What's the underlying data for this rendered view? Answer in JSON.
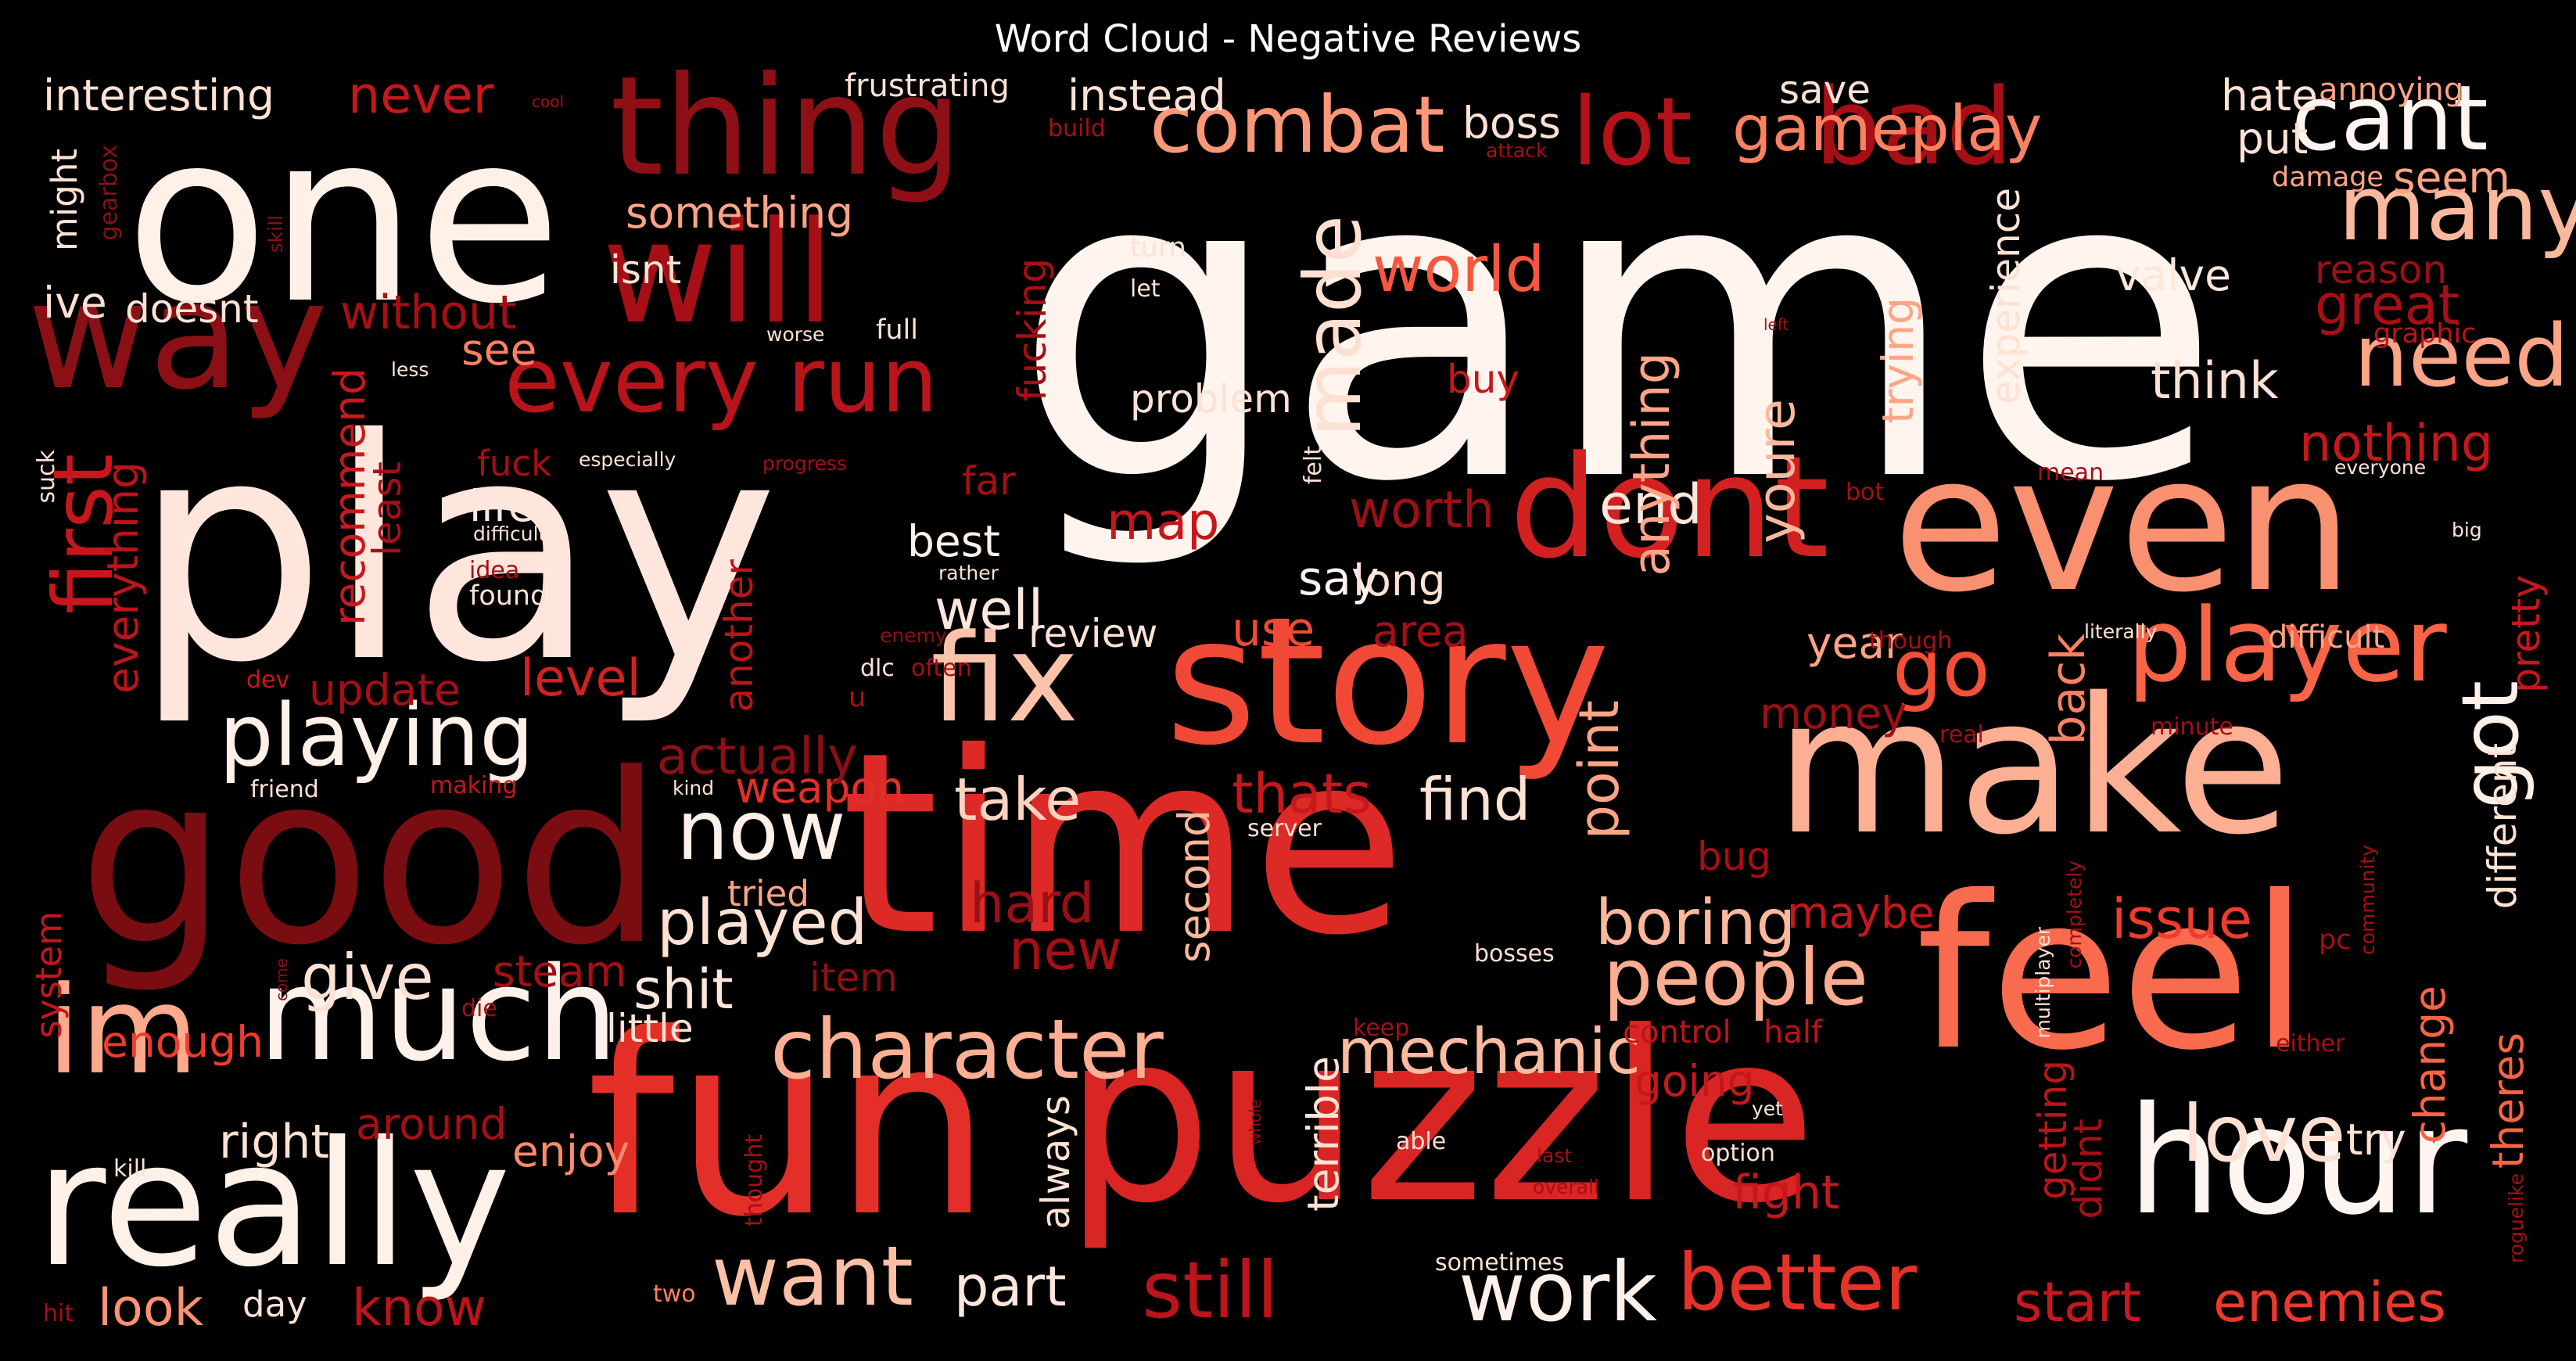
{
  "title": "Word Cloud - Negative Reviews",
  "colors": {
    "background": "#000000",
    "title": "#ffffff"
  },
  "words": [
    {
      "text": "game",
      "color": "#fff4ee",
      "rotated": false
    },
    {
      "text": "one",
      "color": "#fff0e8",
      "rotated": false
    },
    {
      "text": "play",
      "color": "#ffe6dc",
      "rotated": false
    },
    {
      "text": "good",
      "color": "#7a0d12",
      "rotated": false
    },
    {
      "text": "time",
      "color": "#dd2a26",
      "rotated": false
    },
    {
      "text": "fun",
      "color": "#e32f27",
      "rotated": false
    },
    {
      "text": "puzzle",
      "color": "#d92523",
      "rotated": false
    },
    {
      "text": "make",
      "color": "#fcaf93",
      "rotated": false
    },
    {
      "text": "feel",
      "color": "#f96b4e",
      "rotated": false
    },
    {
      "text": "story",
      "color": "#f04a36",
      "rotated": false
    },
    {
      "text": "even",
      "color": "#f9906f",
      "rotated": false
    },
    {
      "text": "really",
      "color": "#fff0e8",
      "rotated": false
    },
    {
      "text": "hour",
      "color": "#fff5f0",
      "rotated": false
    },
    {
      "text": "thing",
      "color": "#8e1016",
      "rotated": false
    },
    {
      "text": "will",
      "color": "#a50f15",
      "rotated": false
    },
    {
      "text": "way",
      "color": "#8b1015",
      "rotated": false
    },
    {
      "text": "dont",
      "color": "#d32020",
      "rotated": false
    },
    {
      "text": "player",
      "color": "#f96346",
      "rotated": false
    },
    {
      "text": "much",
      "color": "#fff1ea",
      "rotated": false
    },
    {
      "text": "fix",
      "color": "#fcc2aa",
      "rotated": false
    },
    {
      "text": "im",
      "color": "#fca98c",
      "rotated": false
    },
    {
      "text": "combat",
      "color": "#fc9778",
      "rotated": false
    },
    {
      "text": "bad",
      "color": "#a50f15",
      "rotated": false
    },
    {
      "text": "lot",
      "color": "#b31218",
      "rotated": false
    },
    {
      "text": "cant",
      "color": "#fff5f0",
      "rotated": false
    },
    {
      "text": "gameplay",
      "color": "#fc8161",
      "rotated": false
    },
    {
      "text": "many",
      "color": "#fcb89d",
      "rotated": false
    },
    {
      "text": "need",
      "color": "#fca486",
      "rotated": false
    },
    {
      "text": "every run",
      "color": "#b81419",
      "rotated": false
    },
    {
      "text": "first",
      "color": "#c5171c",
      "rotated": true
    },
    {
      "text": "playing",
      "color": "#fff0e8",
      "rotated": false
    },
    {
      "text": "character",
      "color": "#fcaf93",
      "rotated": false
    },
    {
      "text": "people",
      "color": "#fcac8f",
      "rotated": false
    },
    {
      "text": "want",
      "color": "#fcc0a6",
      "rotated": false
    },
    {
      "text": "now",
      "color": "#fff0e8",
      "rotated": false
    },
    {
      "text": "better",
      "color": "#e53228",
      "rotated": false
    },
    {
      "text": "love",
      "color": "#fde0d2",
      "rotated": false
    },
    {
      "text": "work",
      "color": "#fff1ea",
      "rotated": false
    },
    {
      "text": "still",
      "color": "#bb141a",
      "rotated": false
    },
    {
      "text": "go",
      "color": "#f44f39",
      "rotated": false
    },
    {
      "text": "got",
      "color": "#fff0e8",
      "rotated": true
    },
    {
      "text": "made",
      "color": "#fde0d2",
      "rotated": true
    },
    {
      "text": "world",
      "color": "#f6573f",
      "rotated": false
    },
    {
      "text": "mechanic",
      "color": "#fcbba1",
      "rotated": false
    },
    {
      "text": "find",
      "color": "#fde2d4",
      "rotated": false
    },
    {
      "text": "take",
      "color": "#fdd3c0",
      "rotated": false
    },
    {
      "text": "played",
      "color": "#fde2d4",
      "rotated": false
    },
    {
      "text": "give",
      "color": "#fde2d4",
      "rotated": false
    },
    {
      "text": "boring",
      "color": "#fcb89d",
      "rotated": false
    },
    {
      "text": "issue",
      "color": "#ef3c2c",
      "rotated": false
    },
    {
      "text": "start",
      "color": "#c8181d",
      "rotated": false
    },
    {
      "text": "enemies",
      "color": "#ed392b",
      "rotated": false
    },
    {
      "text": "look",
      "color": "#fc9272",
      "rotated": false
    },
    {
      "text": "know",
      "color": "#bb141a",
      "rotated": false
    },
    {
      "text": "part",
      "color": "#fde6db",
      "rotated": false
    },
    {
      "text": "right",
      "color": "#fde2d4",
      "rotated": false
    },
    {
      "text": "enjoy",
      "color": "#fc8a6a",
      "rotated": false
    },
    {
      "text": "around",
      "color": "#a50f15",
      "rotated": false
    },
    {
      "text": "enough",
      "color": "#ef3c2c",
      "rotated": false
    },
    {
      "text": "little",
      "color": "#fde2d4",
      "rotated": false
    },
    {
      "text": "shit",
      "color": "#fde6db",
      "rotated": false
    },
    {
      "text": "steam",
      "color": "#a50f15",
      "rotated": false
    },
    {
      "text": "item",
      "color": "#8b1015",
      "rotated": false
    },
    {
      "text": "new",
      "color": "#a50f15",
      "rotated": false
    },
    {
      "text": "hard",
      "color": "#9a1016",
      "rotated": false
    },
    {
      "text": "second",
      "color": "#fcb89d",
      "rotated": true
    },
    {
      "text": "thats",
      "color": "#c5171c",
      "rotated": false
    },
    {
      "text": "weapon",
      "color": "#e32f27",
      "rotated": false
    },
    {
      "text": "actually",
      "color": "#8b1015",
      "rotated": false
    },
    {
      "text": "level",
      "color": "#d42121",
      "rotated": false
    },
    {
      "text": "update",
      "color": "#a50f15",
      "rotated": false
    },
    {
      "text": "everything",
      "color": "#bb141a",
      "rotated": true
    },
    {
      "text": "recommend",
      "color": "#c8181d",
      "rotated": true
    },
    {
      "text": "least",
      "color": "#a50f15",
      "rotated": true
    },
    {
      "text": "life",
      "color": "#fde6db",
      "rotated": false
    },
    {
      "text": "best",
      "color": "#fff1ea",
      "rotated": false
    },
    {
      "text": "well",
      "color": "#fde6db",
      "rotated": false
    },
    {
      "text": "review",
      "color": "#fde2d4",
      "rotated": false
    },
    {
      "text": "use",
      "color": "#f04a36",
      "rotated": false
    },
    {
      "text": "area",
      "color": "#a50f15",
      "rotated": false
    },
    {
      "text": "say",
      "color": "#fff5f0",
      "rotated": false
    },
    {
      "text": "long",
      "color": "#fde2d4",
      "rotated": false
    },
    {
      "text": "worth",
      "color": "#9a1016",
      "rotated": false
    },
    {
      "text": "map",
      "color": "#c5171c",
      "rotated": false
    },
    {
      "text": "end",
      "color": "#fde6db",
      "rotated": false
    },
    {
      "text": "point",
      "color": "#fca486",
      "rotated": true
    },
    {
      "text": "youre",
      "color": "#fcb89d",
      "rotated": true
    },
    {
      "text": "anything",
      "color": "#fca486",
      "rotated": true
    },
    {
      "text": "year",
      "color": "#fca486",
      "rotated": false
    },
    {
      "text": "money",
      "color": "#9a1016",
      "rotated": false
    },
    {
      "text": "back",
      "color": "#fc8161",
      "rotated": true
    },
    {
      "text": "bug",
      "color": "#a50f15",
      "rotated": false
    },
    {
      "text": "maybe",
      "color": "#c5171c",
      "rotated": false
    },
    {
      "text": "going",
      "color": "#c5171c",
      "rotated": false
    },
    {
      "text": "control",
      "color": "#bb141a",
      "rotated": false
    },
    {
      "text": "half",
      "color": "#bb141a",
      "rotated": false
    },
    {
      "text": "terrible",
      "color": "#fde2d4",
      "rotated": true
    },
    {
      "text": "always",
      "color": "#fde2d4",
      "rotated": true
    },
    {
      "text": "fight",
      "color": "#c5171c",
      "rotated": false
    },
    {
      "text": "getting",
      "color": "#bb141a",
      "rotated": true
    },
    {
      "text": "didnt",
      "color": "#a50f15",
      "rotated": true
    },
    {
      "text": "try",
      "color": "#fde2d4",
      "rotated": false
    },
    {
      "text": "change",
      "color": "#f96346",
      "rotated": true
    },
    {
      "text": "theres",
      "color": "#f96346",
      "rotated": true
    },
    {
      "text": "different",
      "color": "#fde2d4",
      "rotated": true
    },
    {
      "text": "pretty",
      "color": "#c5171c",
      "rotated": true
    },
    {
      "text": "difficult",
      "color": "#fca486",
      "rotated": false
    },
    {
      "text": "nothing",
      "color": "#c5171c",
      "rotated": false
    },
    {
      "text": "great",
      "color": "#a50f15",
      "rotated": false
    },
    {
      "text": "think",
      "color": "#fde2d4",
      "rotated": false
    },
    {
      "text": "seem",
      "color": "#fca486",
      "rotated": false
    },
    {
      "text": "put",
      "color": "#fde2d4",
      "rotated": false
    },
    {
      "text": "hate",
      "color": "#fde2d4",
      "rotated": false
    },
    {
      "text": "annoying",
      "color": "#fca486",
      "rotated": false
    },
    {
      "text": "damage",
      "color": "#fca486",
      "rotated": false
    },
    {
      "text": "reason",
      "color": "#9a1016",
      "rotated": false
    },
    {
      "text": "graphic",
      "color": "#bb141a",
      "rotated": false
    },
    {
      "text": "valve",
      "color": "#fde6db",
      "rotated": false
    },
    {
      "text": "save",
      "color": "#fde2d4",
      "rotated": false
    },
    {
      "text": "boss",
      "color": "#fde2d4",
      "rotated": false
    },
    {
      "text": "instead",
      "color": "#fde2d4",
      "rotated": false
    },
    {
      "text": "frustrating",
      "color": "#fde2d4",
      "rotated": false
    },
    {
      "text": "something",
      "color": "#fca486",
      "rotated": false
    },
    {
      "text": "interesting",
      "color": "#fde2d4",
      "rotated": false
    },
    {
      "text": "never",
      "color": "#c5171c",
      "rotated": false
    },
    {
      "text": "cool",
      "color": "#a50f15",
      "rotated": false
    },
    {
      "text": "might",
      "color": "#fde2d4",
      "rotated": true
    },
    {
      "text": "gearbox",
      "color": "#8b1015",
      "rotated": true
    },
    {
      "text": "ive",
      "color": "#fde2d4",
      "rotated": false
    },
    {
      "text": "doesnt",
      "color": "#fde2d4",
      "rotated": false
    },
    {
      "text": "without",
      "color": "#a50f15",
      "rotated": false
    },
    {
      "text": "isnt",
      "color": "#fde2d4",
      "rotated": false
    },
    {
      "text": "see",
      "color": "#fc8161",
      "rotated": false
    },
    {
      "text": "fuck",
      "color": "#a50f15",
      "rotated": false
    },
    {
      "text": "far",
      "color": "#a50f15",
      "rotated": false
    },
    {
      "text": "fucking",
      "color": "#a50f15",
      "rotated": true
    },
    {
      "text": "problem",
      "color": "#fde2d4",
      "rotated": false
    },
    {
      "text": "buy",
      "color": "#c5171c",
      "rotated": false
    },
    {
      "text": "full",
      "color": "#fde2d4",
      "rotated": false
    },
    {
      "text": "turn",
      "color": "#fde2d4",
      "rotated": false
    },
    {
      "text": "let",
      "color": "#fde2d4",
      "rotated": false
    },
    {
      "text": "trying",
      "color": "#fca486",
      "rotated": true
    },
    {
      "text": "experience",
      "color": "#fde2d4",
      "rotated": true
    },
    {
      "text": "left",
      "color": "#a50f15",
      "rotated": false
    },
    {
      "text": "worse",
      "color": "#fde2d4",
      "rotated": false
    },
    {
      "text": "build",
      "color": "#a50f15",
      "rotated": false
    },
    {
      "text": "attack",
      "color": "#a50f15",
      "rotated": false
    },
    {
      "text": "skill",
      "color": "#8b1015",
      "rotated": true
    },
    {
      "text": "less",
      "color": "#fde2d4",
      "rotated": false
    },
    {
      "text": "especially",
      "color": "#fde2d4",
      "rotated": false
    },
    {
      "text": "progress",
      "color": "#a50f15",
      "rotated": false
    },
    {
      "text": "difficulty",
      "color": "#fde2d4",
      "rotated": false
    },
    {
      "text": "idea",
      "color": "#a50f15",
      "rotated": false
    },
    {
      "text": "found",
      "color": "#fde2d4",
      "rotated": false
    },
    {
      "text": "rather",
      "color": "#fde2d4",
      "rotated": false
    },
    {
      "text": "felt",
      "color": "#fde2d4",
      "rotated": true
    },
    {
      "text": "bot",
      "color": "#a50f15",
      "rotated": false
    },
    {
      "text": "mean",
      "color": "#a50f15",
      "rotated": false
    },
    {
      "text": "everyone",
      "color": "#fde2d4",
      "rotated": false
    },
    {
      "text": "big",
      "color": "#fde2d4",
      "rotated": false
    },
    {
      "text": "literally",
      "color": "#fde2d4",
      "rotated": false
    },
    {
      "text": "though",
      "color": "#a50f15",
      "rotated": false
    },
    {
      "text": "minute",
      "color": "#a50f15",
      "rotated": false
    },
    {
      "text": "real",
      "color": "#a50f15",
      "rotated": false
    },
    {
      "text": "community",
      "color": "#a50f15",
      "rotated": true
    },
    {
      "text": "completely",
      "color": "#a50f15",
      "rotated": true
    },
    {
      "text": "multiplayer",
      "color": "#fde2d4",
      "rotated": true
    },
    {
      "text": "pc",
      "color": "#a50f15",
      "rotated": false
    },
    {
      "text": "either",
      "color": "#a50f15",
      "rotated": false
    },
    {
      "text": "roguelike",
      "color": "#a50f15",
      "rotated": true
    },
    {
      "text": "yet",
      "color": "#fde2d4",
      "rotated": false
    },
    {
      "text": "option",
      "color": "#fde2d4",
      "rotated": false
    },
    {
      "text": "able",
      "color": "#fde2d4",
      "rotated": false
    },
    {
      "text": "last",
      "color": "#a50f15",
      "rotated": false
    },
    {
      "text": "overall",
      "color": "#a50f15",
      "rotated": false
    },
    {
      "text": "whole",
      "color": "#8b1015",
      "rotated": true
    },
    {
      "text": "keep",
      "color": "#a50f15",
      "rotated": false
    },
    {
      "text": "bosses",
      "color": "#fde2d4",
      "rotated": false
    },
    {
      "text": "server",
      "color": "#fde2d4",
      "rotated": false
    },
    {
      "text": "tried",
      "color": "#fca486",
      "rotated": false
    },
    {
      "text": "dlc",
      "color": "#fde2d4",
      "rotated": false
    },
    {
      "text": "u",
      "color": "#a50f15",
      "rotated": false
    },
    {
      "text": "often",
      "color": "#a50f15",
      "rotated": false
    },
    {
      "text": "enemy",
      "color": "#8b1015",
      "rotated": false
    },
    {
      "text": "another",
      "color": "#bb141a",
      "rotated": true
    },
    {
      "text": "making",
      "color": "#c5171c",
      "rotated": false
    },
    {
      "text": "kind",
      "color": "#fde2d4",
      "rotated": false
    },
    {
      "text": "friend",
      "color": "#fde2d4",
      "rotated": false
    },
    {
      "text": "dev",
      "color": "#c5171c",
      "rotated": false
    },
    {
      "text": "system",
      "color": "#c5171c",
      "rotated": true
    },
    {
      "text": "come",
      "color": "#8b1015",
      "rotated": true
    },
    {
      "text": "die",
      "color": "#a50f15",
      "rotated": false
    },
    {
      "text": "kill",
      "color": "#fde2d4",
      "rotated": false
    },
    {
      "text": "thought",
      "color": "#a50f15",
      "rotated": true
    },
    {
      "text": "hit",
      "color": "#a50f15",
      "rotated": false
    },
    {
      "text": "two",
      "color": "#fc8161",
      "rotated": false
    },
    {
      "text": "day",
      "color": "#fde2d4",
      "rotated": false
    },
    {
      "text": "sometimes",
      "color": "#fde2d4",
      "rotated": false
    },
    {
      "text": "suck",
      "color": "#fde2d4",
      "rotated": true
    }
  ]
}
